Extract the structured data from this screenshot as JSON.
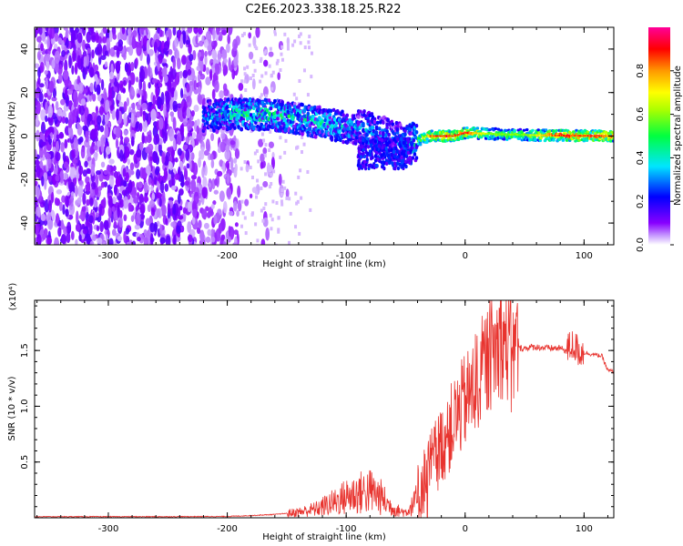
{
  "title": "C2E6.2023.338.18.25.R22",
  "chart_data": [
    {
      "type": "heatmap",
      "xlabel": "Height of straight line (km)",
      "ylabel": "Frequency (Hz)",
      "xlim": [
        -362,
        125
      ],
      "ylim": [
        -50,
        50
      ],
      "xticks": [
        -300,
        -200,
        -100,
        0,
        100
      ],
      "yticks": [
        -40,
        -20,
        0,
        20,
        40
      ],
      "colorbar": {
        "label": "Normalized spectral amplitude",
        "range": [
          0,
          1
        ],
        "ticks": [
          0.0,
          0.2,
          0.4,
          0.6,
          0.8
        ],
        "tick_labels": [
          "0.0",
          "0.2",
          "0.4",
          "0.6",
          "0.8"
        ],
        "colormap": [
          "#ffffff",
          "#8800ff",
          "#0000ff",
          "#00e5ff",
          "#00ff00",
          "#ffff00",
          "#ff8800",
          "#ff0000",
          "#ff00aa"
        ]
      },
      "signal_track": {
        "x": [
          -220,
          -200,
          -180,
          -160,
          -140,
          -120,
          -100,
          -80,
          -60,
          -50,
          -40,
          -30,
          -20,
          -10,
          0,
          20,
          50,
          80,
          125
        ],
        "freq": [
          9,
          10,
          10,
          9.5,
          8,
          6,
          4,
          2,
          -2,
          -4,
          -2,
          0,
          0,
          0,
          1.5,
          1,
          0.5,
          0.2,
          0
        ],
        "amplitude": [
          0.3,
          0.45,
          0.5,
          0.5,
          0.45,
          0.45,
          0.4,
          0.35,
          0.3,
          0.35,
          0.55,
          0.85,
          0.9,
          0.85,
          0.9,
          0.6,
          0.6,
          0.9,
          0.85
        ]
      },
      "noise_region": [
        -362,
        -190
      ]
    },
    {
      "type": "line",
      "xlabel": "Height of straight line (km)",
      "ylabel": "SNR (10 * v/v)",
      "multiplier": "(x10⁴)",
      "xlim": [
        -362,
        125
      ],
      "ylim": [
        0,
        1.95
      ],
      "xticks": [
        -300,
        -200,
        -100,
        0,
        100
      ],
      "yticks": [
        0.5,
        1.0,
        1.5
      ],
      "ytick_labels": [
        "0.5",
        "1.0",
        "1.5"
      ],
      "series": [
        {
          "color": "#e8342f",
          "x": [
            -362,
            -300,
            -250,
            -200,
            -180,
            -160,
            -140,
            -125,
            -110,
            -100,
            -90,
            -80,
            -70,
            -65,
            -60,
            -55,
            -50,
            -45,
            -40,
            -35,
            -30,
            -25,
            -20,
            -15,
            -10,
            -5,
            0,
            5,
            10,
            15,
            20,
            25,
            30,
            35,
            40,
            45,
            50,
            55,
            60,
            70,
            80,
            85,
            90,
            95,
            100,
            105,
            110,
            115,
            120,
            125
          ],
          "y": [
            0.01,
            0.01,
            0.01,
            0.012,
            0.02,
            0.03,
            0.05,
            0.08,
            0.14,
            0.19,
            0.22,
            0.24,
            0.18,
            0.12,
            0.08,
            0.06,
            0.05,
            0.1,
            0.18,
            0.32,
            0.45,
            0.55,
            0.65,
            0.75,
            0.85,
            0.95,
            1.05,
            1.12,
            1.22,
            1.35,
            1.45,
            1.5,
            1.6,
            1.55,
            1.5,
            1.52,
            1.52,
            1.53,
            1.53,
            1.52,
            1.52,
            1.5,
            1.55,
            1.5,
            1.48,
            1.47,
            1.46,
            1.45,
            1.32,
            1.31
          ]
        }
      ]
    }
  ]
}
